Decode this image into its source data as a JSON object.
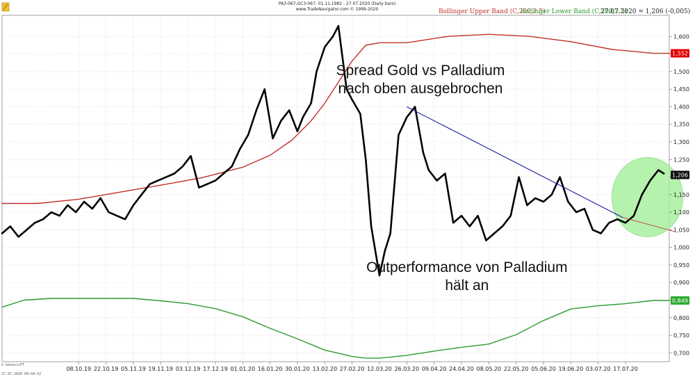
{
  "header": {
    "line1": "PA3-067,GC3-067: 01.11.1982 - 27.07.2020 (Daily bars)",
    "line2": "www.TradeNavigator.com © 1999-2020"
  },
  "legend": {
    "upper": "Bollinger Upper Band (C,200,2.5)",
    "lower": "Bollinger Lower Band (C,200,2.5)",
    "last": "27.07.2020 = 1,206 (-0,005)"
  },
  "footer": {
    "brand": "© GenesisFT",
    "timestamp": "27.07.2020 09:04:52"
  },
  "colors": {
    "price": "#000000",
    "upper_band": "#c0302a",
    "lower_band": "#2e9a2e",
    "trendline": "#1a1aa0",
    "extension": "#c04040",
    "highlight": "#a8f0a0"
  },
  "chart_data": {
    "type": "line",
    "title": "",
    "xlabel": "",
    "ylabel": "",
    "ylim": [
      0.675,
      1.66
    ],
    "y_ticks": [
      0.7,
      0.75,
      0.8,
      0.85,
      0.9,
      0.95,
      1.0,
      1.05,
      1.1,
      1.15,
      1.2,
      1.25,
      1.3,
      1.35,
      1.4,
      1.45,
      1.5,
      1.55,
      1.6
    ],
    "y_tick_labels": [
      "0,700",
      "0,750",
      "0,800",
      "0,850",
      "0,900",
      "0,950",
      "1,000",
      "1,050",
      "1,100",
      "1,150",
      "1,200",
      "1,250",
      "1,300",
      "1,350",
      "1,400",
      "1,450",
      "1,500",
      "1,550",
      "1,600"
    ],
    "x_ticks": [
      "08.10.19",
      "22.10.19",
      "05.11.19",
      "19.11.19",
      "03.12.19",
      "17.12.19",
      "01.01.20",
      "16.01.20",
      "30.01.20",
      "13.02.20",
      "27.02.20",
      "12.03.20",
      "26.03.20",
      "09.04.20",
      "24.04.20",
      "08.05.20",
      "22.05.20",
      "05.06.20",
      "19.06.20",
      "03.07.20",
      "17.07.20"
    ],
    "x_range": [
      -2.8,
      21.6
    ],
    "series": [
      {
        "name": "",
        "role": "price",
        "x": [
          -2.8,
          -2.5,
          -2.2,
          -1.9,
          -1.6,
          -1.3,
          -1.0,
          -0.7,
          -0.4,
          -0.1,
          0.2,
          0.5,
          0.8,
          1.1,
          1.4,
          1.7,
          2.0,
          2.3,
          2.6,
          2.9,
          3.2,
          3.5,
          3.8,
          4.1,
          4.4,
          4.7,
          5.0,
          5.3,
          5.6,
          5.9,
          6.2,
          6.5,
          6.8,
          7.1,
          7.4,
          7.7,
          8.0,
          8.2,
          8.5,
          8.7,
          9.0,
          9.3,
          9.5,
          9.8,
          10.0,
          10.3,
          10.5,
          10.7,
          11.0,
          11.2,
          11.4,
          11.7,
          12.0,
          12.3,
          12.6,
          12.8,
          13.1,
          13.4,
          13.7,
          14.0,
          14.3,
          14.6,
          14.9,
          15.2,
          15.5,
          15.8,
          16.1,
          16.4,
          16.7,
          17.0,
          17.3,
          17.6,
          17.9,
          18.2,
          18.5,
          18.8,
          19.1,
          19.4,
          19.7,
          20.0,
          20.3,
          20.6,
          20.9,
          21.2,
          21.4
        ],
        "y": [
          1.04,
          1.06,
          1.03,
          1.05,
          1.07,
          1.08,
          1.1,
          1.09,
          1.12,
          1.1,
          1.13,
          1.11,
          1.14,
          1.1,
          1.09,
          1.08,
          1.12,
          1.15,
          1.18,
          1.19,
          1.2,
          1.21,
          1.23,
          1.26,
          1.17,
          1.18,
          1.19,
          1.21,
          1.23,
          1.28,
          1.32,
          1.39,
          1.45,
          1.31,
          1.36,
          1.39,
          1.33,
          1.37,
          1.41,
          1.5,
          1.57,
          1.6,
          1.63,
          1.45,
          1.42,
          1.38,
          1.25,
          1.06,
          0.92,
          0.99,
          1.04,
          1.32,
          1.37,
          1.4,
          1.27,
          1.22,
          1.19,
          1.21,
          1.07,
          1.09,
          1.06,
          1.09,
          1.02,
          1.04,
          1.06,
          1.09,
          1.2,
          1.12,
          1.14,
          1.13,
          1.15,
          1.2,
          1.13,
          1.1,
          1.11,
          1.05,
          1.04,
          1.07,
          1.08,
          1.07,
          1.09,
          1.15,
          1.19,
          1.22,
          1.21
        ]
      },
      {
        "name": "Bollinger Upper Band (C,200,2.5)",
        "role": "upper_band",
        "x": [
          -2.8,
          -1.5,
          0.0,
          1.5,
          3.0,
          4.5,
          6.0,
          7.0,
          7.8,
          8.5,
          9.0,
          9.5,
          10.0,
          10.5,
          11.0,
          12.0,
          13.5,
          15.0,
          16.5,
          18.0,
          19.5,
          21.0,
          21.6
        ],
        "y": [
          1.125,
          1.125,
          1.137,
          1.157,
          1.177,
          1.198,
          1.228,
          1.262,
          1.305,
          1.36,
          1.41,
          1.47,
          1.53,
          1.575,
          1.582,
          1.582,
          1.6,
          1.606,
          1.6,
          1.585,
          1.563,
          1.552,
          1.552
        ]
      },
      {
        "name": "Bollinger Lower Band (C,200,2.5)",
        "role": "lower_band",
        "x": [
          -2.8,
          -2.0,
          -1.0,
          0.0,
          1.0,
          2.0,
          3.0,
          4.0,
          5.0,
          6.0,
          7.0,
          8.0,
          9.0,
          10.0,
          10.5,
          11.0,
          12.0,
          13.0,
          14.0,
          15.0,
          16.0,
          17.0,
          18.0,
          19.0,
          20.0,
          21.0,
          21.6
        ],
        "y": [
          0.83,
          0.85,
          0.855,
          0.855,
          0.855,
          0.855,
          0.848,
          0.84,
          0.826,
          0.803,
          0.77,
          0.74,
          0.708,
          0.69,
          0.685,
          0.685,
          0.693,
          0.705,
          0.716,
          0.725,
          0.752,
          0.792,
          0.825,
          0.834,
          0.84,
          0.849,
          0.849
        ]
      }
    ],
    "trendline": {
      "x": [
        12.0,
        19.9
      ],
      "y": [
        1.4,
        1.085
      ]
    },
    "trendline_extension": {
      "x": [
        19.9,
        21.8
      ],
      "y": [
        1.085,
        1.045
      ]
    },
    "highlight_ellipse": {
      "cx": 20.8,
      "cy": 1.143,
      "rx": 1.3,
      "ry": 0.113
    },
    "value_badges": [
      {
        "value": 1.552,
        "label": "1,552",
        "bg": "#e00000",
        "fg": "#ffffff"
      },
      {
        "value": 1.206,
        "label": "1,206",
        "bg": "#111111",
        "fg": "#ffffff"
      },
      {
        "value": 0.849,
        "label": "0,849",
        "bg": "#2eaa2e",
        "fg": "#ffffff"
      }
    ],
    "annotations": [
      {
        "lines": [
          "Spread Gold vs Palladium",
          "nach oben ausgebrochen"
        ],
        "x": 12.5,
        "y": 1.49
      },
      {
        "lines": [
          "Outperformance von Palladium",
          "hält an"
        ],
        "x": 14.2,
        "y": 0.93
      }
    ],
    "grid": true,
    "legend_position": "top-right"
  }
}
